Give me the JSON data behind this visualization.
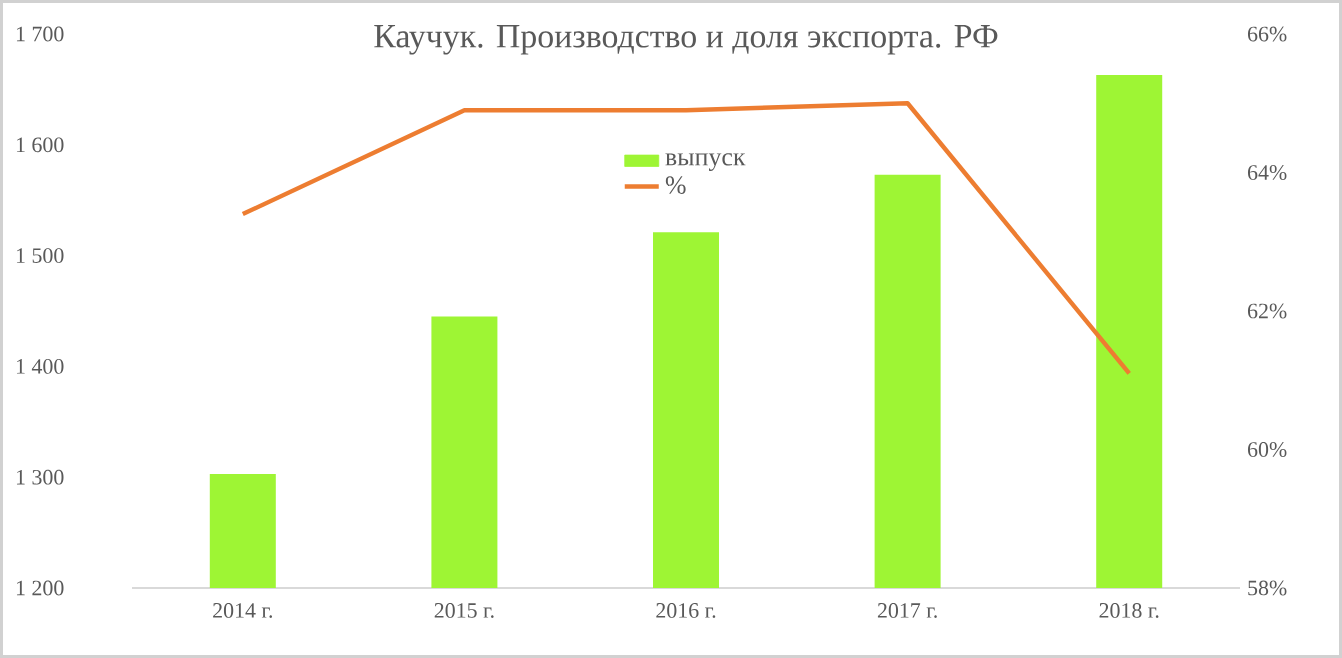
{
  "chart_data": {
    "type": "bar",
    "title": "Каучук. Производство и доля экспорта. РФ",
    "categories": [
      "2014 г.",
      "2015 г.",
      "2016 г.",
      "2017 г.",
      "2018 г."
    ],
    "series": [
      {
        "name": "выпуск",
        "color": "#9ef534",
        "values": [
          1303,
          1445,
          1521,
          1573,
          1663
        ]
      },
      {
        "name": "%",
        "type": "line",
        "axis": "y2",
        "color": "#ed7d31",
        "values": [
          63.4,
          64.9,
          64.9,
          65.0,
          61.1
        ]
      }
    ],
    "ylim": [
      1200,
      1700
    ],
    "yticks": [
      {
        "value": 1200,
        "label": "1 200"
      },
      {
        "value": 1300,
        "label": "1 300"
      },
      {
        "value": 1400,
        "label": "1 400"
      },
      {
        "value": 1500,
        "label": "1 500"
      },
      {
        "value": 1600,
        "label": "1 600"
      },
      {
        "value": 1700,
        "label": "1 700"
      }
    ],
    "y2lim": [
      58,
      66
    ],
    "y2ticks": [
      {
        "value": 58,
        "label": "58%"
      },
      {
        "value": 60,
        "label": "60%"
      },
      {
        "value": 62,
        "label": "62%"
      },
      {
        "value": 64,
        "label": "64%"
      },
      {
        "value": 66,
        "label": "66%"
      }
    ],
    "legend": "top",
    "grid": false,
    "marker": "none"
  }
}
